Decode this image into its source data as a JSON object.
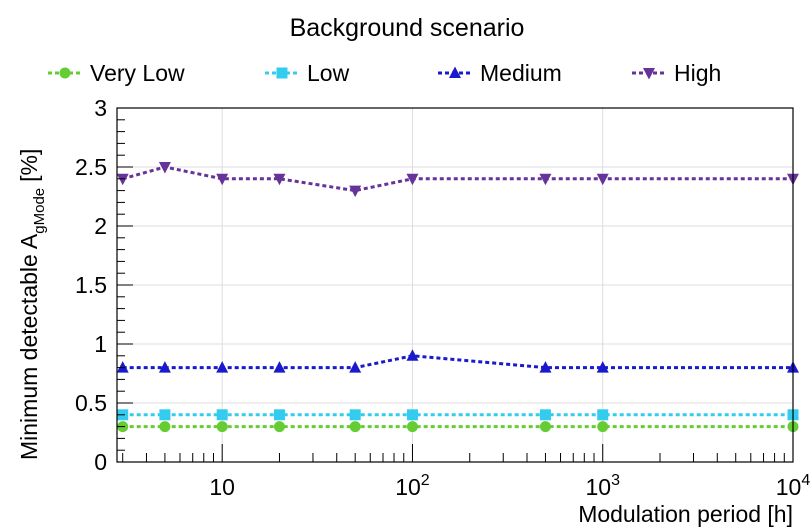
{
  "chart_data": {
    "type": "line",
    "title": "Background scenario",
    "xlabel": "Modulation period [h]",
    "ylabel_main": "Minimum detectable A",
    "ylabel_sub": "gMode",
    "ylabel_unit": "[%]",
    "x_scale": "log",
    "xlim": [
      2.8,
      10000
    ],
    "ylim": [
      0,
      3
    ],
    "grid": true,
    "legend_position": "top",
    "x_tick_labels": [
      {
        "value": 10,
        "base": "10",
        "exp": ""
      },
      {
        "value": 100,
        "base": "10",
        "exp": "2"
      },
      {
        "value": 1000,
        "base": "10",
        "exp": "3"
      },
      {
        "value": 10000,
        "base": "10",
        "exp": "4"
      }
    ],
    "y_ticks": [
      0,
      0.5,
      1,
      1.5,
      2,
      2.5,
      3
    ],
    "y_tick_labels": [
      "0",
      "0.5",
      "1",
      "1.5",
      "2",
      "2.5",
      "3"
    ],
    "x": [
      3,
      5,
      10,
      20,
      50,
      100,
      500,
      1000,
      10000
    ],
    "series": [
      {
        "name": "Very Low",
        "color": "#66cc33",
        "marker": "circle",
        "values": [
          0.3,
          0.3,
          0.3,
          0.3,
          0.3,
          0.3,
          0.3,
          0.3,
          0.3
        ]
      },
      {
        "name": "Low",
        "color": "#33ccee",
        "marker": "square",
        "values": [
          0.4,
          0.4,
          0.4,
          0.4,
          0.4,
          0.4,
          0.4,
          0.4,
          0.4
        ]
      },
      {
        "name": "Medium",
        "color": "#1a1acc",
        "marker": "triangle-up",
        "values": [
          0.8,
          0.8,
          0.8,
          0.8,
          0.8,
          0.9,
          0.8,
          0.8,
          0.8
        ]
      },
      {
        "name": "High",
        "color": "#663399",
        "marker": "triangle-down",
        "values": [
          2.4,
          2.5,
          2.4,
          2.4,
          2.3,
          2.4,
          2.4,
          2.4,
          2.4
        ]
      }
    ]
  }
}
